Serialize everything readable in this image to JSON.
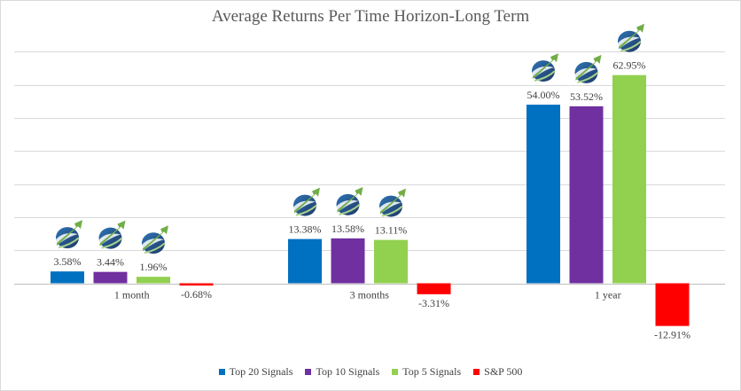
{
  "chart_data": {
    "type": "bar",
    "title": "Average Returns Per Time Horizon-Long Term",
    "xlabel": "",
    "ylabel": "",
    "ylim": [
      -20,
      70
    ],
    "grid": true,
    "legend_position": "bottom",
    "categories": [
      "1 month",
      "3 months",
      "1 year"
    ],
    "series": [
      {
        "name": "Top 20 Signals",
        "color": "#0070c0",
        "values": [
          3.58,
          13.38,
          54.0
        ],
        "labels": [
          "3.58%",
          "13.38%",
          "54.00%"
        ],
        "logo": true
      },
      {
        "name": "Top 10 Signals",
        "color": "#7030a0",
        "values": [
          3.44,
          13.58,
          53.52
        ],
        "labels": [
          "3.44%",
          "13.58%",
          "53.52%"
        ],
        "logo": true
      },
      {
        "name": "Top 5 Signals",
        "color": "#92d050",
        "values": [
          1.96,
          13.11,
          62.95
        ],
        "labels": [
          "1.96%",
          "13.11%",
          "62.95%"
        ],
        "logo": true
      },
      {
        "name": "S&P 500",
        "color": "#ff0000",
        "values": [
          -0.68,
          -3.31,
          -12.91
        ],
        "labels": [
          "-0.68%",
          "-3.31%",
          "-12.91%"
        ],
        "logo": false
      }
    ]
  }
}
